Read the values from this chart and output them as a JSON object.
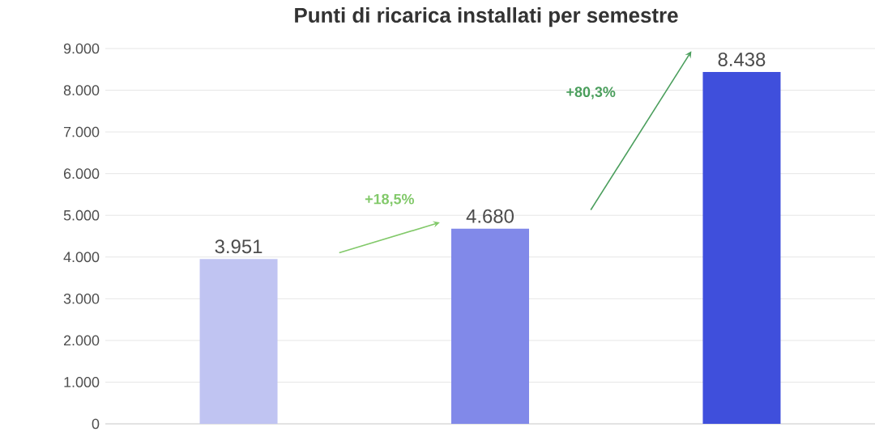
{
  "chart_data": {
    "type": "bar",
    "title": "Punti di ricarica installati per semestre",
    "categories": [
      null,
      null,
      null
    ],
    "values": [
      3951,
      4680,
      8438
    ],
    "colors": [
      "#c0c4f2",
      "#8189e9",
      "#3f4fdc"
    ],
    "value_labels": [
      "3.951",
      "4.680",
      "8.438"
    ],
    "ylim": [
      0,
      9000
    ],
    "yticks": [
      {
        "value": 0,
        "label": "0"
      },
      {
        "value": 1000,
        "label": "1.000"
      },
      {
        "value": 2000,
        "label": "2.000"
      },
      {
        "value": 3000,
        "label": "3.000"
      },
      {
        "value": 4000,
        "label": "4.000"
      },
      {
        "value": 5000,
        "label": "5.000"
      },
      {
        "value": 6000,
        "label": "6.000"
      },
      {
        "value": 7000,
        "label": "7.000"
      },
      {
        "value": 8000,
        "label": "8.000"
      },
      {
        "value": 9000,
        "label": "9.000"
      }
    ],
    "grid": "y",
    "annotations": [
      "+18,5%",
      "+80,3%"
    ]
  }
}
